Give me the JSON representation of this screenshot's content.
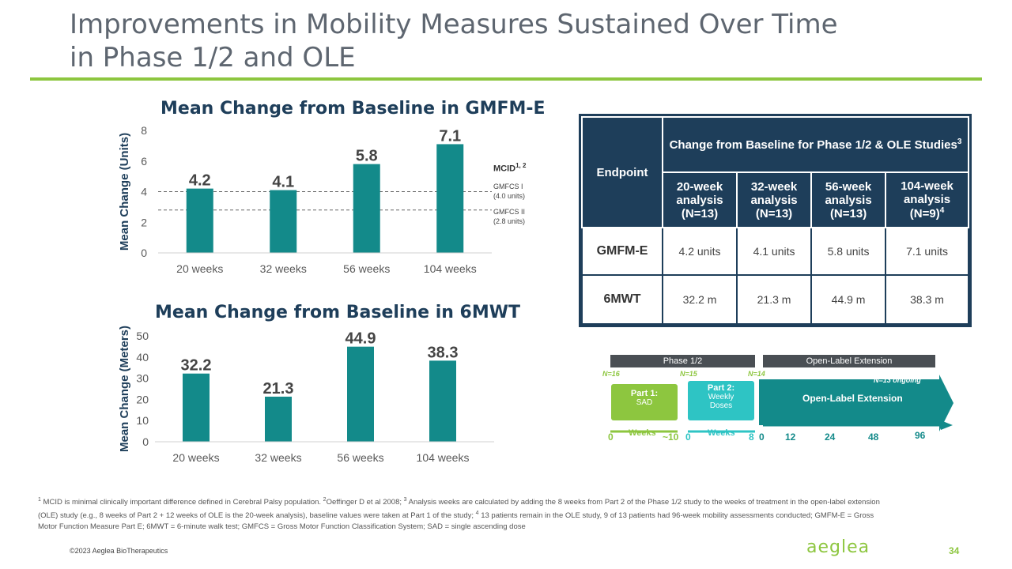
{
  "slide": {
    "title": "Improvements in Mobility Measures Sustained Over Time in Phase 1/2 and OLE",
    "copyright": "©2023 Aeglea BioTherapeutics",
    "logo_text": "aeglea",
    "page_number": "34",
    "footnote_1_num": "1",
    "footnote_text_a": " MCID is minimal clinically important difference defined in Cerebral Palsy population. ",
    "footnote_2_num": "2",
    "footnote_text_b": "Oeffinger D et al 2008;  ",
    "footnote_3_num": "3",
    "footnote_text_c": " Analysis weeks are calculated by adding the 8 weeks from Part 2 of the Phase 1/2 study to the weeks of treatment in the open-label extension (OLE) study (e.g., 8 weeks of Part 2 + 12 weeks of OLE is the 20-week analysis), baseline values were taken at Part 1 of the study; ",
    "footnote_4_num": "4",
    "footnote_text_d": " 13 patients remain in the OLE study, 9 of 13 patients had 96-week mobility assessments conducted; GMFM-E = Gross Motor Function Measure Part E; 6MWT = 6-minute walk test; GMFCS = Gross Motor Function Classification System; SAD = single ascending dose"
  },
  "mcid": {
    "label": "MCID",
    "sup": "1, 2",
    "gmfcs1_line1": "GMFCS I",
    "gmfcs1_line2": "(4.0 units)",
    "gmfcs2_line1": "GMFCS II",
    "gmfcs2_line2": "(2.8 units)"
  },
  "chart_data": [
    {
      "type": "bar",
      "title": "Mean Change from Baseline in GMFM-E",
      "ylabel": "Mean Change (Units)",
      "xlabel": "",
      "categories": [
        "20 weeks",
        "32 weeks",
        "56 weeks",
        "104 weeks"
      ],
      "values": [
        4.2,
        4.1,
        5.8,
        7.1
      ],
      "value_labels": [
        "4.2",
        "4.1",
        "5.8",
        "7.1"
      ],
      "ylim": [
        0,
        8
      ],
      "yticks": [
        "0",
        "2",
        "4",
        "6",
        "8"
      ],
      "reference_lines": [
        4.0,
        2.8
      ],
      "color": "#138a8a"
    },
    {
      "type": "bar",
      "title": "Mean Change from Baseline in 6MWT",
      "ylabel": "Mean Change (Meters)",
      "xlabel": "",
      "categories": [
        "20 weeks",
        "32 weeks",
        "56 weeks",
        "104 weeks"
      ],
      "values": [
        32.2,
        21.3,
        44.9,
        38.3
      ],
      "value_labels": [
        "32.2",
        "21.3",
        "44.9",
        "38.3"
      ],
      "ylim": [
        0,
        50
      ],
      "yticks": [
        "0",
        "10",
        "20",
        "30",
        "40",
        "50"
      ],
      "color": "#138a8a"
    }
  ],
  "table": {
    "endpoint_header": "Endpoint",
    "group_header": "Change from Baseline for Phase 1/2 & OLE Studies",
    "group_header_sup": "3",
    "col1_a": "20-week",
    "col1_b": "analysis",
    "col1_c": "(N=13)",
    "col2_a": "32-week",
    "col2_b": "analysis",
    "col2_c": "(N=13)",
    "col3_a": "56-week",
    "col3_b": "analysis",
    "col3_c": "(N=13)",
    "col4_a": "104-week",
    "col4_b": "analysis",
    "col4_c": "(N=9)",
    "col4_sup": "4",
    "rows": [
      {
        "label": "GMFM-E",
        "values": [
          "4.2 units",
          "4.1 units",
          "5.8 units",
          "7.1 units"
        ]
      },
      {
        "label": "6MWT",
        "values": [
          "32.2 m",
          "21.3 m",
          "44.9 m",
          "38.3 m"
        ]
      }
    ]
  },
  "timeline": {
    "phase12_label": "Phase 1/2",
    "ole_label": "Open-Label Extension",
    "n16": "N=16",
    "n15": "N=15",
    "n14": "N=14",
    "n13": "N=13 ongoing",
    "part1_title": "Part 1:",
    "part1_sub": "SAD",
    "part2_title": "Part 2:",
    "part2_sub1": "Weekly",
    "part2_sub2": "Doses",
    "ole_box_label": "Open-Label Extension",
    "weeks_label_1": "Weeks",
    "weeks_label_2": "Weeks",
    "tick_0a": "0",
    "tick_10": "~10",
    "tick_0b": "0",
    "tick_8": "8",
    "tick_0c": "0",
    "tick_12": "12",
    "tick_24": "24",
    "tick_48": "48",
    "tick_96": "96"
  }
}
